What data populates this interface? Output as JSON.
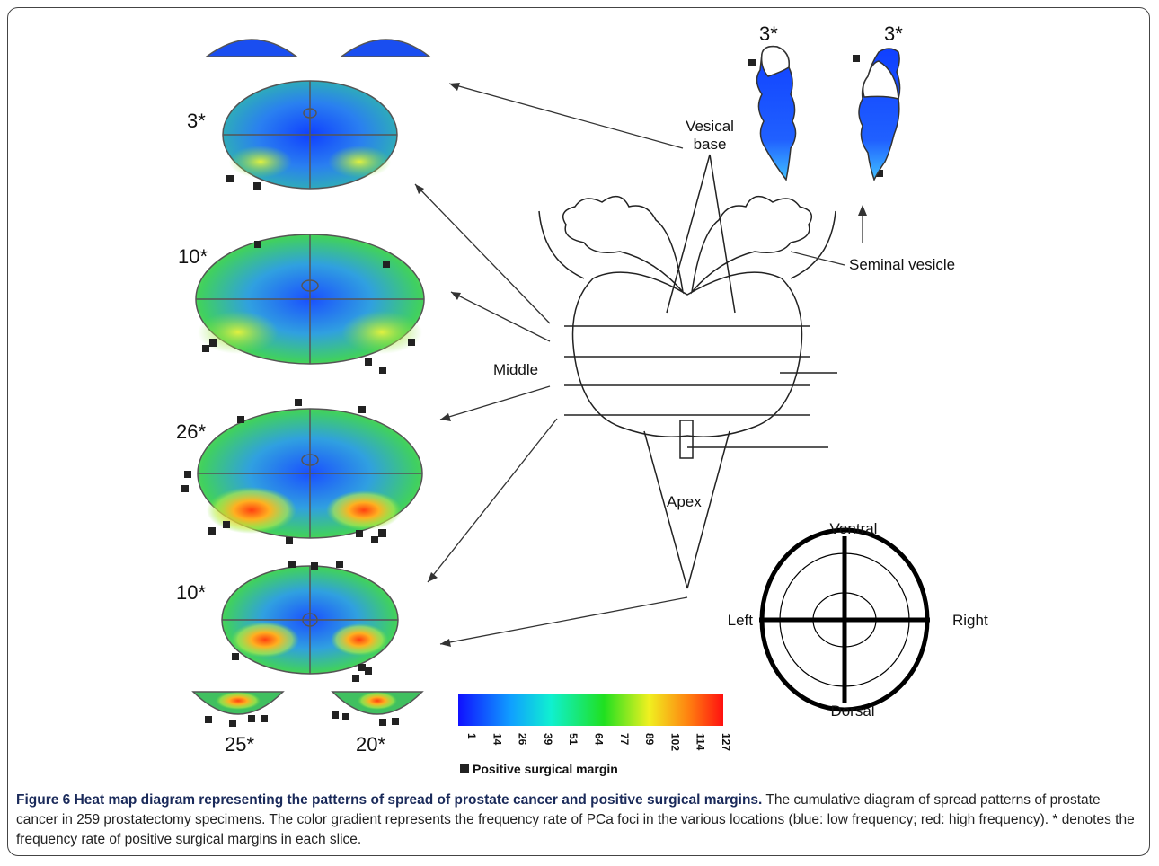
{
  "slices": {
    "labels": [
      "3*",
      "10*",
      "26*",
      "10*",
      "25*",
      "20*"
    ]
  },
  "seminal": {
    "labels": [
      "3*",
      "3*"
    ]
  },
  "anatomy": {
    "vesical_base": "Vesical base",
    "seminal_vesicle": "Seminal vesicle",
    "middle": "Middle",
    "apex": "Apex"
  },
  "orientation": {
    "ventral": "Ventral",
    "left": "Left",
    "right": "Right",
    "dorsal": "Dorsal"
  },
  "colorbar": {
    "ticks": [
      1,
      14,
      26,
      39,
      51,
      64,
      77,
      89,
      102,
      114,
      127
    ]
  },
  "legend": {
    "text": "Positive surgical margin"
  },
  "caption": {
    "bold": "Figure 6 Heat map diagram representing the patterns of spread of prostate cancer and positive surgical margins.",
    "text": "The cumulative diagram of spread patterns of prostate cancer in 259 prostatectomy specimens. The color gradient represents the frequency rate of PCa foci in the various locations (blue: low frequency; red: high frequency). * denotes the frequency rate of positive surgical margins in each slice."
  }
}
